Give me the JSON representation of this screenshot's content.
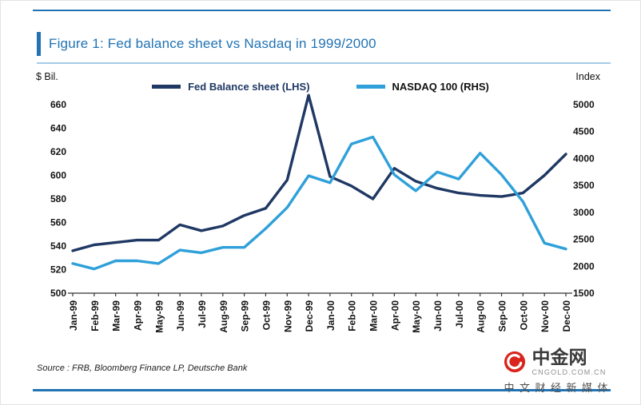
{
  "figure": {
    "title": "Figure 1: Fed balance sheet vs Nasdaq in 1999/2000",
    "source": "Source : FRB, Bloomberg Finance LP, Deutsche Bank"
  },
  "watermark": {
    "brand": "中金网",
    "domain": "CNGOLD.COM.CN",
    "tagline": "中文财经新媒体"
  },
  "colors": {
    "blue": "#2173b4",
    "light_blue_rule": "#a6cbe7",
    "fed_navy": "#1f3864",
    "nasdaq_blue": "#2fa0d9",
    "logo_red": "#d9251d"
  },
  "chart_data": {
    "type": "line",
    "title": "Figure 1: Fed balance sheet vs Nasdaq in 1999/2000",
    "grid": false,
    "legend_position": "top",
    "categories": [
      "Jan-99",
      "Feb-99",
      "Mar-99",
      "Apr-99",
      "May-99",
      "Jun-99",
      "Jul-99",
      "Aug-99",
      "Sep-99",
      "Oct-99",
      "Nov-99",
      "Dec-99",
      "Jan-00",
      "Feb-00",
      "Mar-00",
      "Apr-00",
      "May-00",
      "Jun-00",
      "Jul-00",
      "Aug-00",
      "Sep-00",
      "Oct-00",
      "Nov-00",
      "Dec-00"
    ],
    "left_axis": {
      "label": "$ Bil.",
      "min": 500,
      "max": 660,
      "step": 20
    },
    "right_axis": {
      "label": "Index",
      "min": 1500,
      "max": 5000,
      "step": 500
    },
    "series": [
      {
        "id": "fed-balance-line",
        "name": "Fed Balance sheet (LHS)",
        "axis": "left",
        "color": "#1f3864",
        "values": [
          536,
          541,
          543,
          545,
          545,
          558,
          553,
          557,
          566,
          572,
          596,
          668,
          599,
          591,
          580,
          606,
          595,
          589,
          585,
          583,
          582,
          585,
          600,
          618
        ]
      },
      {
        "id": "nasdaq-line",
        "name": "NASDAQ 100 (RHS)",
        "axis": "right",
        "color": "#2fa0d9",
        "values": [
          2050,
          1950,
          2100,
          2100,
          2050,
          2300,
          2250,
          2350,
          2350,
          2700,
          3090,
          3680,
          3550,
          4270,
          4400,
          3700,
          3400,
          3750,
          3620,
          4100,
          3700,
          3200,
          2430,
          2320
        ]
      }
    ]
  }
}
